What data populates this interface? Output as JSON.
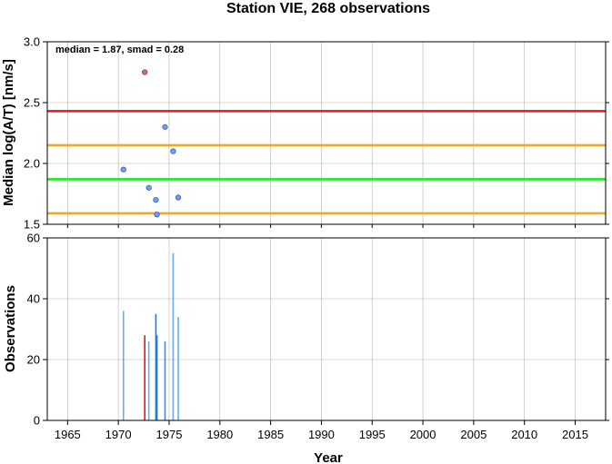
{
  "chart_data": [
    {
      "type": "scatter",
      "title": "Station VIE, 268 observations",
      "annotation": "median = 1.87, smad = 0.28",
      "ylabel": "Median log(A/T) [nm/s]",
      "xlim": [
        1963,
        2018
      ],
      "ylim": [
        1.5,
        3.0
      ],
      "yticks": [
        "1.5",
        "2.0",
        "2.5",
        "3.0"
      ],
      "grid": true,
      "points": [
        {
          "x": 1970.5,
          "y": 1.95,
          "color": "#6f9fe8"
        },
        {
          "x": 1972.6,
          "y": 2.75,
          "color": "#f06060"
        },
        {
          "x": 1973.0,
          "y": 1.8,
          "color": "#6f9fe8"
        },
        {
          "x": 1973.7,
          "y": 1.7,
          "color": "#6f9fe8"
        },
        {
          "x": 1973.8,
          "y": 1.58,
          "color": "#6f9fe8"
        },
        {
          "x": 1974.6,
          "y": 2.3,
          "color": "#6f9fe8"
        },
        {
          "x": 1975.4,
          "y": 2.1,
          "color": "#6f9fe8"
        },
        {
          "x": 1975.9,
          "y": 1.72,
          "color": "#6f9fe8"
        }
      ],
      "hlines": [
        {
          "y": 2.43,
          "color": "#e8141a"
        },
        {
          "y": 2.15,
          "color": "#f5a623"
        },
        {
          "y": 1.87,
          "color": "#1ee81e"
        },
        {
          "y": 1.59,
          "color": "#f5a623"
        }
      ]
    },
    {
      "type": "bar",
      "xlabel": "Year",
      "ylabel": "Observations",
      "xlim": [
        1963,
        2018
      ],
      "ylim": [
        0,
        60
      ],
      "yticks": [
        "0",
        "20",
        "40",
        "60"
      ],
      "xticks": [
        "1965",
        "1970",
        "1975",
        "1980",
        "1985",
        "1990",
        "1995",
        "2000",
        "2005",
        "2010",
        "2015"
      ],
      "grid": true,
      "bars": [
        {
          "x": 1970.5,
          "value": 36,
          "color": "#6aaaf0"
        },
        {
          "x": 1972.6,
          "value": 28,
          "color": "#e8141a"
        },
        {
          "x": 1973.0,
          "value": 26,
          "color": "#6aaaf0"
        },
        {
          "x": 1973.7,
          "value": 35,
          "color": "#1e78e0"
        },
        {
          "x": 1973.8,
          "value": 28,
          "color": "#1e78e0"
        },
        {
          "x": 1974.6,
          "value": 26,
          "color": "#3a8ee6"
        },
        {
          "x": 1975.4,
          "value": 55,
          "color": "#6aaaf0"
        },
        {
          "x": 1975.9,
          "value": 34,
          "color": "#6aaaf0"
        }
      ]
    }
  ]
}
